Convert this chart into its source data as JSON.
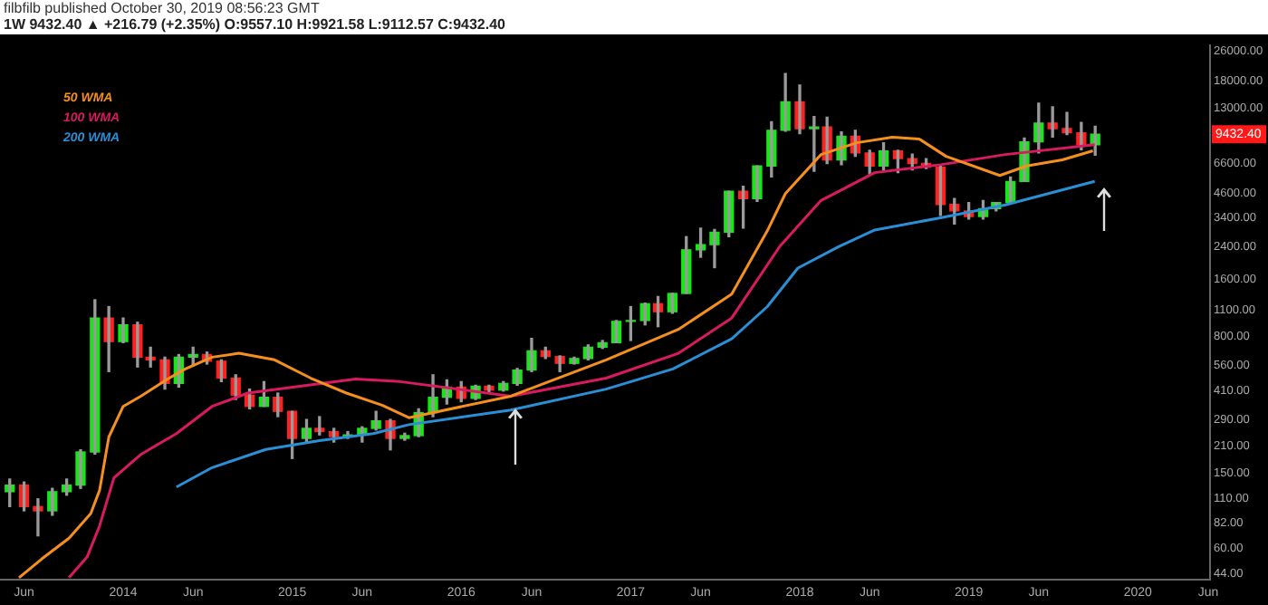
{
  "chart_data": {
    "type": "candlestick",
    "title": "filbfilb published October 30, 2019 08:56:23 GMT",
    "subtitle": "1W 9432.40 ▲ +216.79 (+2.35%) O:9557.10 H:9921.58 L:9112.57 C:9432.40",
    "x": [
      "2013-05",
      "2013-06",
      "2013-07",
      "2013-08",
      "2013-09",
      "2013-10",
      "2013-11",
      "2013-12",
      "2014-01",
      "2014-02",
      "2014-03",
      "2014-04",
      "2014-05",
      "2014-06",
      "2014-07",
      "2014-08",
      "2014-09",
      "2014-10",
      "2014-11",
      "2014-12",
      "2015-01",
      "2015-02",
      "2015-03",
      "2015-04",
      "2015-05",
      "2015-06",
      "2015-07",
      "2015-08",
      "2015-09",
      "2015-10",
      "2015-11",
      "2015-12",
      "2016-01",
      "2016-02",
      "2016-03",
      "2016-04",
      "2016-05",
      "2016-06",
      "2016-07",
      "2016-08",
      "2016-09",
      "2016-10",
      "2016-11",
      "2016-12",
      "2017-01",
      "2017-02",
      "2017-03",
      "2017-04",
      "2017-05",
      "2017-06",
      "2017-07",
      "2017-08",
      "2017-09",
      "2017-10",
      "2017-11",
      "2017-12",
      "2018-01",
      "2018-02",
      "2018-03",
      "2018-04",
      "2018-05",
      "2018-06",
      "2018-07",
      "2018-08",
      "2018-09",
      "2018-10",
      "2018-11",
      "2018-12",
      "2019-01",
      "2019-02",
      "2019-03",
      "2019-04",
      "2019-05",
      "2019-06",
      "2019-07",
      "2019-08",
      "2019-09",
      "2019-10"
    ],
    "ohlc": [
      [
        120,
        140,
        100,
        130
      ],
      [
        130,
        135,
        95,
        100
      ],
      [
        100,
        110,
        70,
        95
      ],
      [
        95,
        125,
        90,
        120
      ],
      [
        120,
        140,
        115,
        130
      ],
      [
        130,
        200,
        125,
        195
      ],
      [
        195,
        1250,
        190,
        1000
      ],
      [
        1000,
        1150,
        520,
        750
      ],
      [
        750,
        1000,
        740,
        920
      ],
      [
        920,
        950,
        550,
        620
      ],
      [
        620,
        700,
        550,
        600
      ],
      [
        600,
        620,
        420,
        450
      ],
      [
        450,
        640,
        430,
        620
      ],
      [
        620,
        700,
        560,
        640
      ],
      [
        640,
        660,
        570,
        590
      ],
      [
        590,
        600,
        460,
        480
      ],
      [
        480,
        500,
        370,
        390
      ],
      [
        390,
        420,
        330,
        340
      ],
      [
        340,
        460,
        340,
        380
      ],
      [
        380,
        400,
        300,
        320
      ],
      [
        320,
        320,
        180,
        230
      ],
      [
        230,
        290,
        220,
        260
      ],
      [
        260,
        300,
        240,
        250
      ],
      [
        250,
        260,
        220,
        235
      ],
      [
        235,
        250,
        230,
        240
      ],
      [
        240,
        265,
        220,
        260
      ],
      [
        260,
        320,
        255,
        285
      ],
      [
        285,
        290,
        200,
        230
      ],
      [
        230,
        245,
        225,
        238
      ],
      [
        238,
        330,
        235,
        315
      ],
      [
        315,
        500,
        300,
        380
      ],
      [
        380,
        470,
        350,
        430
      ],
      [
        430,
        460,
        360,
        375
      ],
      [
        375,
        440,
        370,
        435
      ],
      [
        435,
        440,
        400,
        415
      ],
      [
        415,
        460,
        410,
        450
      ],
      [
        450,
        540,
        440,
        530
      ],
      [
        530,
        780,
        520,
        670
      ],
      [
        670,
        700,
        610,
        625
      ],
      [
        625,
        630,
        520,
        575
      ],
      [
        575,
        620,
        570,
        610
      ],
      [
        610,
        720,
        600,
        700
      ],
      [
        700,
        760,
        690,
        740
      ],
      [
        740,
        970,
        740,
        960
      ],
      [
        960,
        1150,
        760,
        970
      ],
      [
        970,
        1200,
        920,
        1190
      ],
      [
        1190,
        1300,
        900,
        1080
      ],
      [
        1080,
        1350,
        1060,
        1350
      ],
      [
        1350,
        2700,
        1350,
        2300
      ],
      [
        2300,
        3000,
        2100,
        2450
      ],
      [
        2450,
        2950,
        1850,
        2850
      ],
      [
        2850,
        4700,
        2700,
        4700
      ],
      [
        4700,
        5000,
        3000,
        4300
      ],
      [
        4300,
        6400,
        4150,
        6400
      ],
      [
        6400,
        11000,
        5600,
        9900
      ],
      [
        9900,
        19800,
        9800,
        14000
      ],
      [
        14000,
        17200,
        9500,
        10100
      ],
      [
        10100,
        11700,
        6000,
        10300
      ],
      [
        10300,
        11600,
        6600,
        6900
      ],
      [
        6900,
        9700,
        6500,
        9200
      ],
      [
        9200,
        9900,
        7200,
        7500
      ],
      [
        7500,
        7750,
        5800,
        6400
      ],
      [
        6400,
        8500,
        6100,
        7700
      ],
      [
        7700,
        7750,
        5900,
        7000
      ],
      [
        7000,
        7400,
        6100,
        6600
      ],
      [
        6600,
        7000,
        6200,
        6300
      ],
      [
        6300,
        6500,
        3500,
        4000
      ],
      [
        4000,
        4300,
        3150,
        3700
      ],
      [
        3700,
        4100,
        3350,
        3450
      ],
      [
        3450,
        4200,
        3350,
        3800
      ],
      [
        3800,
        4100,
        3700,
        4100
      ],
      [
        4100,
        5600,
        4050,
        5300
      ],
      [
        5300,
        9000,
        5300,
        8600
      ],
      [
        8600,
        13800,
        7500,
        10800
      ],
      [
        10800,
        13200,
        9100,
        10100
      ],
      [
        10100,
        12300,
        9400,
        9600
      ],
      [
        9600,
        10900,
        7800,
        8300
      ],
      [
        8300,
        10400,
        7300,
        9432.4
      ]
    ],
    "series": [
      {
        "name": "50 WMA",
        "type": "line",
        "color": "#f5901e",
        "x": [
          "2013-05-21",
          "2013-07-10",
          "2013-09-06",
          "2013-10-23",
          "2013-11-11",
          "2013-12-01",
          "2014-01-01",
          "2014-02-08",
          "2014-04-07",
          "2014-05-15",
          "2014-07-12",
          "2014-09-08",
          "2014-11-24",
          "2015-02-10",
          "2015-04-28",
          "2015-07-14",
          "2015-09-10",
          "2016-04-17",
          "2016-11-09",
          "2017-04-14",
          "2017-08-07",
          "2017-10-23",
          "2017-12-01",
          "2018-02-16",
          "2018-05-04",
          "2018-07-20",
          "2018-09-16",
          "2018-11-13",
          "2019-03-09",
          "2019-05-06",
          "2019-07-22",
          "2019-09-26"
        ],
        "values": [
          42,
          53,
          68,
          92,
          122,
          234,
          340,
          385,
          475,
          537,
          620,
          650,
          600,
          480,
          400,
          345,
          296,
          385,
          600,
          870,
          1340,
          2900,
          4570,
          7360,
          8500,
          9100,
          8900,
          7200,
          5700,
          6400,
          6900,
          7700
        ]
      },
      {
        "name": "100 WMA",
        "type": "line",
        "color": "#d81b60",
        "x": [
          "2013-09-06",
          "2013-10-15",
          "2013-11-11",
          "2013-12-12",
          "2014-02-08",
          "2014-04-26",
          "2014-07-12",
          "2014-09-27",
          "2015-01-02",
          "2015-05-18",
          "2015-08-22",
          "2016-04-17",
          "2016-11-09",
          "2017-04-14",
          "2017-08-07",
          "2017-11-19",
          "2018-02-16",
          "2018-06-12",
          "2018-11-01",
          "2019-03-21",
          "2019-09-30"
        ],
        "values": [
          42,
          54,
          79,
          142,
          189,
          244,
          340,
          400,
          430,
          475,
          460,
          385,
          480,
          650,
          1000,
          2400,
          4200,
          5900,
          6500,
          7360,
          8300
        ]
      },
      {
        "name": "200 WMA",
        "type": "line",
        "color": "#2b8fd6",
        "x": [
          "2014-04-26",
          "2014-07-12",
          "2014-11-05",
          "2015-03-01",
          "2015-06-25",
          "2015-09-10",
          "2016-04-17",
          "2016-11-09",
          "2017-04-02",
          "2017-08-07",
          "2017-10-23",
          "2017-12-28",
          "2018-03-26",
          "2018-06-12",
          "2018-11-01",
          "2019-03-21",
          "2019-09-30"
        ],
        "values": [
          127,
          161,
          201,
          224,
          244,
          272,
          325,
          420,
          537,
          775,
          1150,
          1840,
          2390,
          2930,
          3400,
          3980,
          5300
        ]
      }
    ],
    "xlim": [
      "2013-04-10",
      "2020-06-05"
    ],
    "xticks": [
      {
        "value": "2013-06-01",
        "label": "Jun"
      },
      {
        "value": "2014-01-01",
        "label": "2014"
      },
      {
        "value": "2014-06-01",
        "label": "Jun"
      },
      {
        "value": "2015-01-01",
        "label": "2015"
      },
      {
        "value": "2015-06-01",
        "label": "Jun"
      },
      {
        "value": "2016-01-01",
        "label": "2016"
      },
      {
        "value": "2016-06-01",
        "label": "Jun"
      },
      {
        "value": "2017-01-01",
        "label": "2017"
      },
      {
        "value": "2017-06-01",
        "label": "Jun"
      },
      {
        "value": "2018-01-01",
        "label": "2018"
      },
      {
        "value": "2018-06-01",
        "label": "Jun"
      },
      {
        "value": "2019-01-01",
        "label": "2019"
      },
      {
        "value": "2019-06-01",
        "label": "Jun"
      },
      {
        "value": "2020-01-01",
        "label": "2020"
      },
      {
        "value": "2020-06-01",
        "label": "Jun"
      }
    ],
    "ylim": [
      41,
      28000
    ],
    "log": true,
    "yticks": [
      {
        "value": 44,
        "label": "44.00"
      },
      {
        "value": 60,
        "label": "60.00"
      },
      {
        "value": 82,
        "label": "82.00"
      },
      {
        "value": 110,
        "label": "110.00"
      },
      {
        "value": 150,
        "label": "150.00"
      },
      {
        "value": 210,
        "label": "210.00"
      },
      {
        "value": 290,
        "label": "290.00"
      },
      {
        "value": 410,
        "label": "410.00"
      },
      {
        "value": 560,
        "label": "560.00"
      },
      {
        "value": 800,
        "label": "800.00"
      },
      {
        "value": 1100,
        "label": "1100.00"
      },
      {
        "value": 1600,
        "label": "1600.00"
      },
      {
        "value": 2400,
        "label": "2400.00"
      },
      {
        "value": 3400,
        "label": "3400.00"
      },
      {
        "value": 4600,
        "label": "4600.00"
      },
      {
        "value": 6600,
        "label": "6600.00"
      },
      {
        "value": 13000,
        "label": "13000.00"
      },
      {
        "value": 18000,
        "label": "18000.00"
      },
      {
        "value": 26000,
        "label": "26000.00"
      }
    ],
    "legend": "top left",
    "annotations": [
      {
        "text": "9432.40",
        "y": 9432.4
      }
    ]
  }
}
